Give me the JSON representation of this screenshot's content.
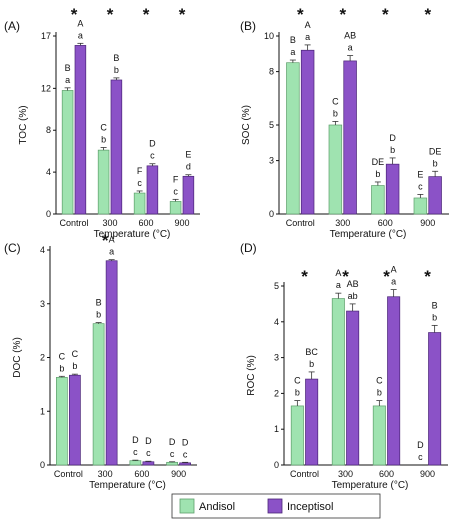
{
  "colors": {
    "andisol": "#9fe3b0",
    "andisol_stroke": "#5e9f6c",
    "inceptisol": "#8b52c7",
    "inceptisol_stroke": "#4a2577",
    "axis": "#111111"
  },
  "legend": {
    "items": [
      {
        "label": "Andisol",
        "color": "#9fe3b0"
      },
      {
        "label": "Inceptisol",
        "color": "#8b52c7"
      }
    ]
  },
  "chart_data": [
    {
      "panel": "(A)",
      "type": "bar",
      "ylabel": "TOC (%)",
      "xlabel": "Temperature (°C)",
      "categories": [
        "Control",
        "300",
        "600",
        "900"
      ],
      "yticks": [
        "0",
        "4",
        "8",
        "12",
        "17"
      ],
      "ylim": [
        0,
        17
      ],
      "series": [
        {
          "name": "Andisol",
          "values": [
            11.8,
            6.1,
            2.0,
            1.2
          ],
          "errors": [
            0.25,
            0.25,
            0.2,
            0.2
          ],
          "lower": [
            "a",
            "b",
            "c",
            "c"
          ],
          "upper": [
            "B",
            "C",
            "F",
            "F"
          ]
        },
        {
          "name": "Inceptisol",
          "values": [
            16.1,
            12.8,
            4.6,
            3.6
          ],
          "errors": [
            0.2,
            0.2,
            0.2,
            0.15
          ],
          "lower": [
            "a",
            "b",
            "c",
            "d"
          ],
          "upper": [
            "A",
            "B",
            "D",
            "E"
          ]
        }
      ],
      "stars": [
        "*",
        "*",
        "*",
        "*"
      ]
    },
    {
      "panel": "(B)",
      "type": "bar",
      "ylabel": "SOC (%)",
      "xlabel": "Temperature (°C)",
      "categories": [
        "Control",
        "300",
        "600",
        "900"
      ],
      "yticks": [
        "0",
        "3",
        "5",
        "8",
        "10"
      ],
      "ylim": [
        0,
        10
      ],
      "series": [
        {
          "name": "Andisol",
          "values": [
            8.5,
            5.0,
            1.6,
            0.9
          ],
          "errors": [
            0.15,
            0.2,
            0.2,
            0.2
          ],
          "lower": [
            "a",
            "b",
            "b",
            "c"
          ],
          "upper": [
            "B",
            "C",
            "DE",
            "E"
          ]
        },
        {
          "name": "Inceptisol",
          "values": [
            9.2,
            8.6,
            2.8,
            2.1
          ],
          "errors": [
            0.3,
            0.3,
            0.35,
            0.3
          ],
          "lower": [
            "a",
            "a",
            "b",
            "b"
          ],
          "upper": [
            "A",
            "AB",
            "D",
            "DE"
          ]
        }
      ],
      "stars": [
        "*",
        "*",
        "*",
        "*"
      ]
    },
    {
      "panel": "(C)",
      "type": "bar",
      "ylabel": "DOC (%)",
      "xlabel": "Temperature (°C)",
      "categories": [
        "Control",
        "300",
        "600",
        "900"
      ],
      "yticks": [
        "0",
        "1",
        "2",
        "3",
        "4"
      ],
      "ylim": [
        0,
        4
      ],
      "series": [
        {
          "name": "Andisol",
          "values": [
            1.63,
            2.63,
            0.08,
            0.05
          ],
          "errors": [
            0.02,
            0.02,
            0.01,
            0.01
          ],
          "lower": [
            "b",
            "b",
            "c",
            "c"
          ],
          "upper": [
            "C",
            "B",
            "D",
            "D"
          ]
        },
        {
          "name": "Inceptisol",
          "values": [
            1.67,
            3.8,
            0.06,
            0.04
          ],
          "errors": [
            0.02,
            0.02,
            0.01,
            0.01
          ],
          "lower": [
            "b",
            "a",
            "c",
            "c"
          ],
          "upper": [
            "C",
            "A",
            "D",
            "D"
          ]
        }
      ],
      "stars": [
        "",
        "*",
        "",
        ""
      ]
    },
    {
      "panel": "(D)",
      "type": "bar",
      "ylabel": "ROC (%)",
      "xlabel": "Temperature (°C)",
      "categories": [
        "Control",
        "300",
        "600",
        "900"
      ],
      "yticks": [
        "0",
        "1",
        "2",
        "3",
        "4",
        "5"
      ],
      "ylim": [
        0,
        5
      ],
      "series": [
        {
          "name": "Andisol",
          "values": [
            1.65,
            4.65,
            1.65,
            0.0
          ],
          "errors": [
            0.15,
            0.15,
            0.15,
            0.0
          ],
          "lower": [
            "b",
            "a",
            "b",
            "c"
          ],
          "upper": [
            "C",
            "A",
            "C",
            "D"
          ]
        },
        {
          "name": "Inceptisol",
          "values": [
            2.4,
            4.3,
            4.7,
            3.7
          ],
          "errors": [
            0.2,
            0.2,
            0.2,
            0.2
          ],
          "lower": [
            "b",
            "ab",
            "a",
            "b"
          ],
          "upper": [
            "BC",
            "AB",
            "A",
            "B"
          ]
        }
      ],
      "stars": [
        "*",
        "*",
        "*",
        "*"
      ]
    }
  ]
}
